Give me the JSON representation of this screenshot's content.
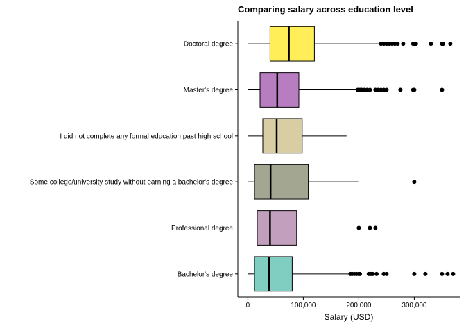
{
  "chart_data": {
    "type": "boxplot",
    "orientation": "horizontal",
    "title": "Comparing salary across education level",
    "xlabel": "Salary (USD)",
    "ylabel": "",
    "xlim": [
      -18000,
      382000
    ],
    "xticks": [
      0,
      100000,
      200000,
      300000
    ],
    "xtick_labels": [
      "0",
      "100,000",
      "200,000",
      "300,000"
    ],
    "grid": false,
    "legend": "none",
    "categories": [
      "Doctoral degree",
      "Master's degree",
      "I did not complete any formal education past high school",
      "Some college/university study without earning a bachelor's degree",
      "Professional degree",
      "Bachelor's degree"
    ],
    "series": [
      {
        "category": "Doctoral degree",
        "color": "#FFEE58",
        "whisker_low": 0,
        "q1": 40000,
        "median": 74000,
        "q3": 120000,
        "whisker_high": 237000,
        "outliers": [
          240000,
          245000,
          250000,
          255000,
          260000,
          265000,
          270000,
          280000,
          298000,
          300000,
          303000,
          330000,
          350000,
          352000,
          365000
        ]
      },
      {
        "category": "Master's degree",
        "color": "#B87CC0",
        "whisker_low": 0,
        "q1": 22000,
        "median": 53000,
        "q3": 92000,
        "whisker_high": 195000,
        "outliers": [
          198000,
          202000,
          205000,
          210000,
          215000,
          220000,
          230000,
          235000,
          240000,
          245000,
          250000,
          275000,
          298000,
          300000,
          350000
        ]
      },
      {
        "category": "I did not complete any formal education past high school",
        "color": "#D9CDA3",
        "whisker_low": 0,
        "q1": 27000,
        "median": 52000,
        "q3": 98000,
        "whisker_high": 178000,
        "outliers": []
      },
      {
        "category": "Some college/university study without earning a bachelor's degree",
        "color": "#A3A792",
        "whisker_low": 0,
        "q1": 12000,
        "median": 41000,
        "q3": 109000,
        "whisker_high": 199000,
        "outliers": [
          300000
        ]
      },
      {
        "category": "Professional degree",
        "color": "#C39FBE",
        "whisker_low": 0,
        "q1": 17000,
        "median": 40000,
        "q3": 88000,
        "whisker_high": 176000,
        "outliers": [
          200000,
          220000,
          230000
        ]
      },
      {
        "category": "Bachelor's degree",
        "color": "#80CDC1",
        "whisker_low": 0,
        "q1": 12000,
        "median": 38000,
        "q3": 80000,
        "whisker_high": 183000,
        "outliers": [
          185000,
          188000,
          192000,
          196000,
          200000,
          202000,
          218000,
          222000,
          225000,
          232000,
          245000,
          250000,
          300000,
          320000,
          350000,
          360000,
          370000
        ]
      }
    ]
  }
}
